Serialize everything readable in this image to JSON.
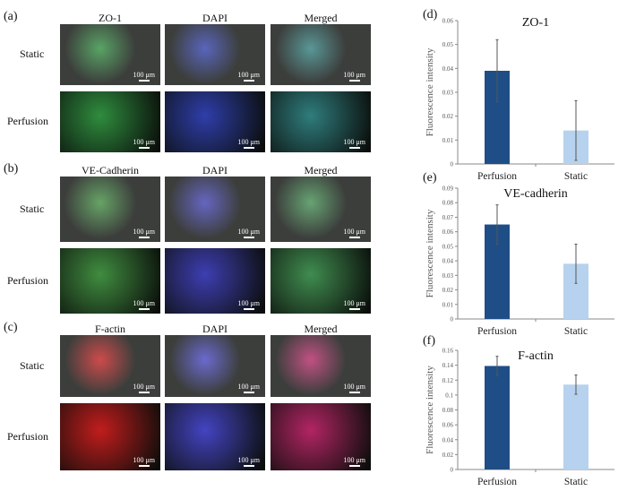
{
  "panels": [
    {
      "letter": "(a)",
      "channels": [
        "ZO-1",
        "DAPI",
        "Merged"
      ],
      "rows": [
        "Static",
        "Perfusion"
      ],
      "colors": [
        "#2a8a3a",
        "#2a3aa8",
        "#2a7a7a"
      ]
    },
    {
      "letter": "(b)",
      "channels": [
        "VE-Cadherin",
        "DAPI",
        "Merged"
      ],
      "rows": [
        "Static",
        "Perfusion"
      ],
      "colors": [
        "#3c8a3c",
        "#3a3ab0",
        "#3c8a4c"
      ]
    },
    {
      "letter": "(c)",
      "channels": [
        "F-actin",
        "DAPI",
        "Merged"
      ],
      "rows": [
        "Static",
        "Perfusion"
      ],
      "colors": [
        "#c01818",
        "#4040c0",
        "#b02060"
      ]
    }
  ],
  "scale_bar": "100 μm",
  "chart_data": [
    {
      "letter": "(d)",
      "type": "bar",
      "title": "ZO-1",
      "ylabel": "Fluorescence intensity",
      "categories": [
        "Perfusion",
        "Static"
      ],
      "values": [
        0.039,
        0.014
      ],
      "errors": [
        0.013,
        0.0125
      ],
      "ylim": [
        0,
        0.06
      ],
      "ticks": [
        "0",
        "0.01",
        "0.02",
        "0.03",
        "0.04",
        "0.05",
        "0.06"
      ],
      "tickvals": [
        0,
        0.01,
        0.02,
        0.03,
        0.04,
        0.05,
        0.06
      ],
      "colors": [
        "#1f4e87",
        "#b7d2ee"
      ]
    },
    {
      "letter": "(e)",
      "type": "bar",
      "title": "VE-cadherin",
      "ylabel": "Fluorescence intensity",
      "categories": [
        "Perfusion",
        "Static"
      ],
      "values": [
        0.065,
        0.038
      ],
      "errors": [
        0.0135,
        0.0135
      ],
      "ylim": [
        0,
        0.09
      ],
      "ticks": [
        "0",
        "0.01",
        "0.02",
        "0.03",
        "0.04",
        "0.05",
        "0.06",
        "0.07",
        "0.08",
        "0.09"
      ],
      "tickvals": [
        0,
        0.01,
        0.02,
        0.03,
        0.04,
        0.05,
        0.06,
        0.07,
        0.08,
        0.09
      ],
      "colors": [
        "#1f4e87",
        "#b7d2ee"
      ]
    },
    {
      "letter": "(f)",
      "type": "bar",
      "title": "F-actin",
      "ylabel": "Fluorescence intensity",
      "categories": [
        "Perfusion",
        "Static"
      ],
      "values": [
        0.139,
        0.114
      ],
      "errors": [
        0.013,
        0.013
      ],
      "ylim": [
        0,
        0.16
      ],
      "ticks": [
        "0",
        "0.02",
        "0.04",
        "0.06",
        "0.08",
        "0.1",
        "0.12",
        "0.14",
        "0.16"
      ],
      "tickvals": [
        0,
        0.02,
        0.04,
        0.06,
        0.08,
        0.1,
        0.12,
        0.14,
        0.16
      ],
      "colors": [
        "#1f4e87",
        "#b7d2ee"
      ]
    }
  ]
}
